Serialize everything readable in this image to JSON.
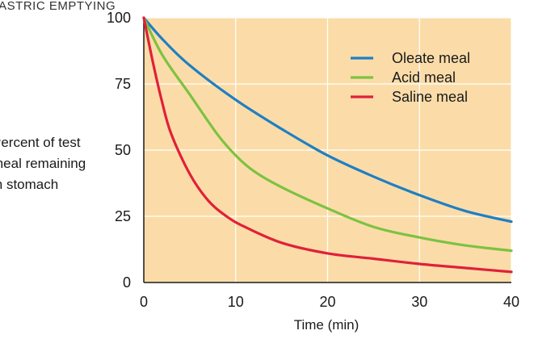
{
  "chart_data": {
    "type": "line",
    "title": "GASTRIC EMPTYING",
    "xlabel": "Time (min)",
    "ylabel_lines": [
      "Percent of test",
      "meal remaining",
      "in stomach"
    ],
    "xlim": [
      0,
      40
    ],
    "ylim": [
      0,
      100
    ],
    "x_ticks": [
      0,
      10,
      20,
      30,
      40
    ],
    "y_ticks": [
      0,
      25,
      50,
      75,
      100
    ],
    "grid": true,
    "background_color": "#fbdca8",
    "grid_color": "#ffffff",
    "legend_position": "top-right",
    "series": [
      {
        "name": "Oleate meal",
        "color": "#1f7fc4",
        "x": [
          0,
          2,
          5,
          10,
          15,
          20,
          25,
          30,
          35,
          40
        ],
        "values": [
          100,
          92,
          82,
          69,
          58,
          48,
          40,
          33,
          27,
          23
        ]
      },
      {
        "name": "Acid meal",
        "color": "#7cc242",
        "x": [
          0,
          2,
          5,
          8,
          10,
          12,
          15,
          20,
          25,
          30,
          35,
          40
        ],
        "values": [
          100,
          86,
          71,
          56,
          48,
          42,
          36,
          28,
          21,
          17,
          14,
          12
        ]
      },
      {
        "name": "Saline meal",
        "color": "#e0203a",
        "x": [
          0,
          1,
          2,
          3,
          5,
          7,
          9,
          11,
          15,
          20,
          25,
          30,
          35,
          40
        ],
        "values": [
          100,
          83,
          68,
          56,
          41,
          31,
          25,
          21,
          15,
          11,
          9,
          7,
          5.5,
          4
        ]
      }
    ]
  }
}
